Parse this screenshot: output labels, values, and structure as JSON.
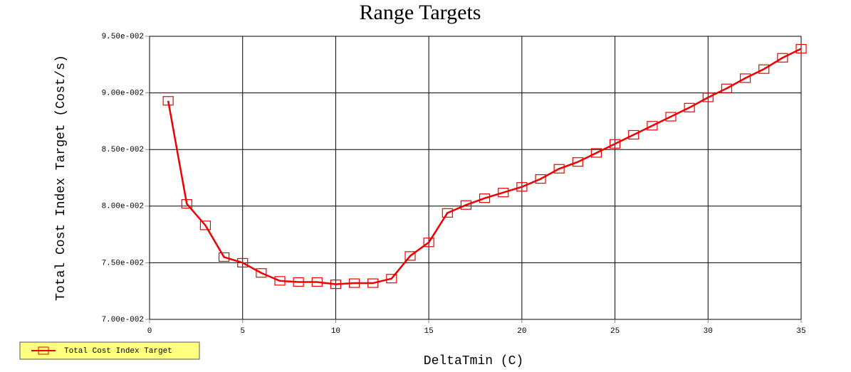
{
  "chart_data": {
    "type": "line",
    "title": "Range Targets",
    "x_label": "DeltaTmin (C)",
    "y_label": "Total Cost Index Target (Cost/s)",
    "x": [
      1,
      2,
      3,
      4,
      5,
      6,
      7,
      8,
      9,
      10,
      11,
      12,
      13,
      14,
      15,
      16,
      17,
      18,
      19,
      20,
      21,
      22,
      23,
      24,
      25,
      26,
      27,
      28,
      29,
      30,
      31,
      32,
      33,
      34,
      35
    ],
    "series": [
      {
        "name": "Total Cost Index Target",
        "color": "#ee0000",
        "values": [
          0.0893,
          0.0802,
          0.0783,
          0.0755,
          0.075,
          0.0741,
          0.0734,
          0.0733,
          0.0733,
          0.0731,
          0.0732,
          0.0732,
          0.0736,
          0.0756,
          0.0768,
          0.0794,
          0.0801,
          0.0807,
          0.0812,
          0.0817,
          0.0824,
          0.0833,
          0.0839,
          0.0847,
          0.0855,
          0.0863,
          0.0871,
          0.0879,
          0.0887,
          0.0896,
          0.0904,
          0.0913,
          0.0921,
          0.0931,
          0.0939
        ]
      }
    ],
    "xlim": [
      0,
      35
    ],
    "xticks": [
      0,
      5,
      10,
      15,
      20,
      25,
      30,
      35
    ],
    "ylim": [
      0.07,
      0.095
    ],
    "yticks": [
      {
        "value": 0.07,
        "label": "7.00e-002"
      },
      {
        "value": 0.075,
        "label": "7.50e-002"
      },
      {
        "value": 0.08,
        "label": "8.00e-002"
      },
      {
        "value": 0.085,
        "label": "8.50e-002"
      },
      {
        "value": 0.09,
        "label": "9.00e-002"
      },
      {
        "value": 0.095,
        "label": "9.50e-002"
      }
    ],
    "grid": true,
    "legend": "bottom-left"
  }
}
